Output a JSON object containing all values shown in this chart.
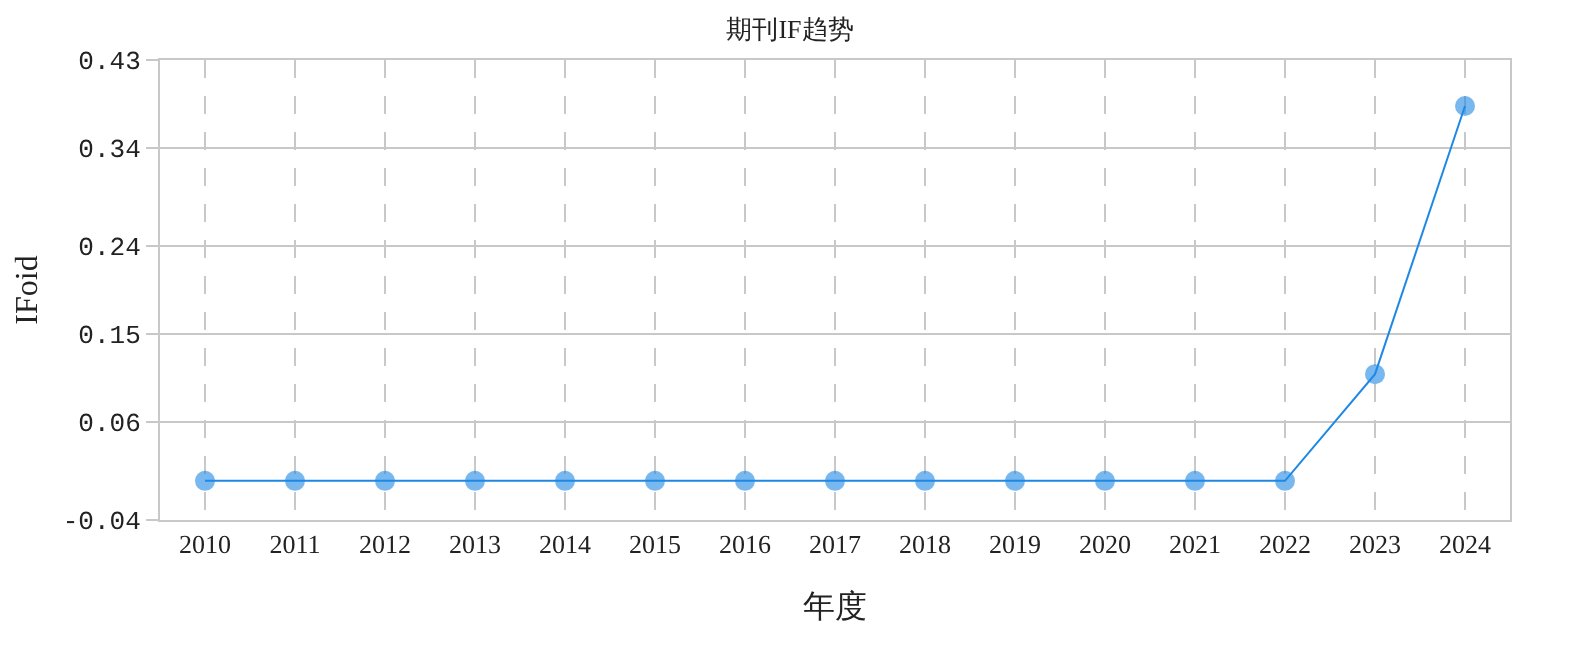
{
  "chart_data": {
    "type": "line",
    "title": "期刊IF趋势",
    "xlabel": "年度",
    "ylabel": "IFoid",
    "categories": [
      "2010",
      "2011",
      "2012",
      "2013",
      "2014",
      "2015",
      "2016",
      "2017",
      "2018",
      "2019",
      "2020",
      "2021",
      "2022",
      "2023",
      "2024"
    ],
    "series": [
      {
        "color": "#1e88e5",
        "values": [
          0,
          0,
          0,
          0,
          0,
          0,
          0,
          0,
          0,
          0,
          0,
          0,
          0,
          0.109,
          0.383
        ]
      }
    ],
    "ylim": [
      -0.04,
      0.43
    ],
    "yticks": [
      -0.04,
      0.06,
      0.15,
      0.24,
      0.34,
      0.43
    ],
    "grid": true,
    "marker": "circle",
    "line_style": "solid"
  }
}
